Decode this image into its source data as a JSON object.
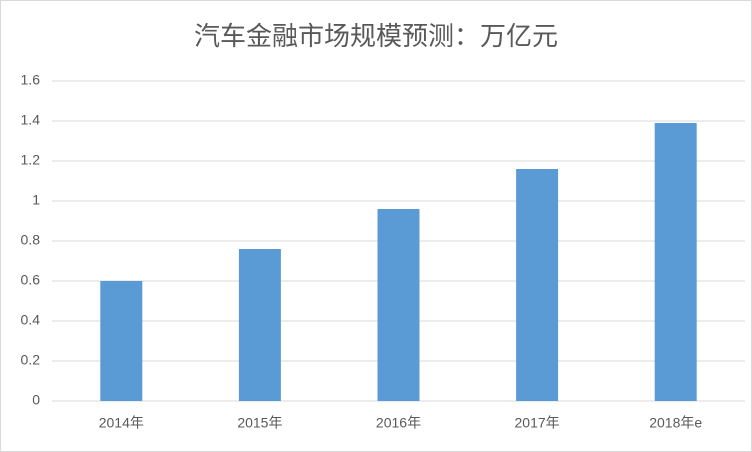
{
  "chart_data": {
    "type": "bar",
    "title": "汽车金融市场规模预测：万亿元",
    "categories": [
      "2014年",
      "2015年",
      "2016年",
      "2017年",
      "2018年e"
    ],
    "values": [
      0.6,
      0.76,
      0.96,
      1.16,
      1.39
    ],
    "color": "#5b9bd5",
    "ylim": [
      0,
      1.6
    ],
    "yticks": [
      0,
      0.2,
      0.4,
      0.6,
      0.8,
      1,
      1.2,
      1.4,
      1.6
    ],
    "grid": true
  }
}
